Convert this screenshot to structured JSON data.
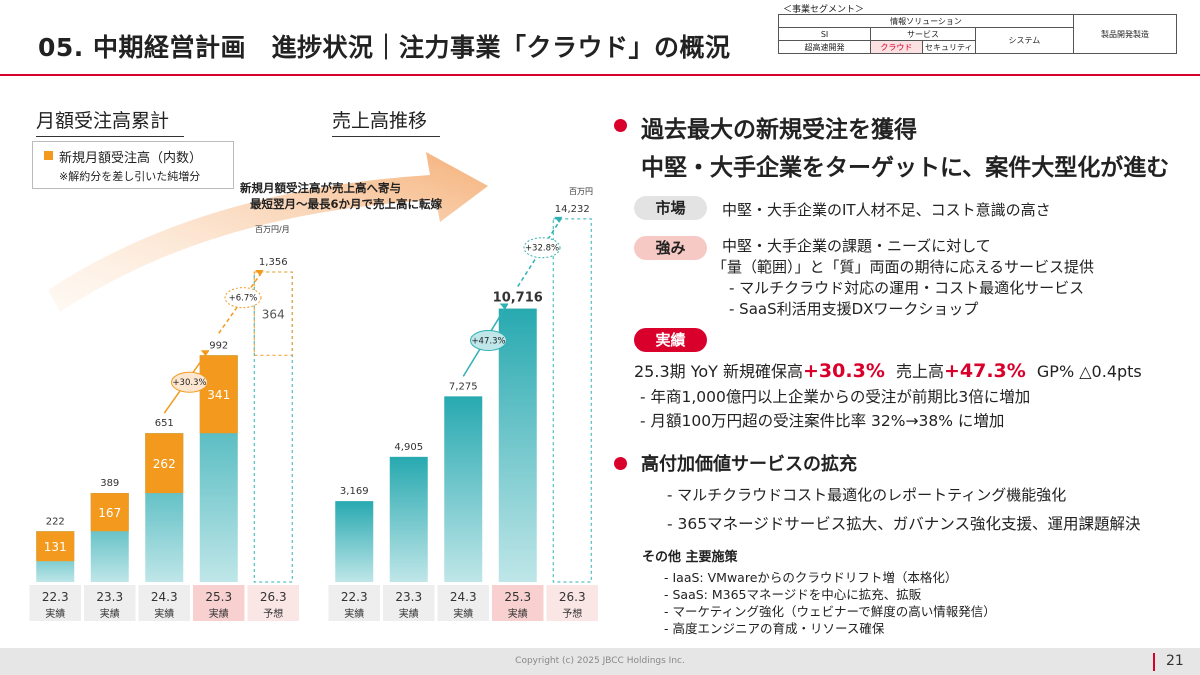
{
  "header": {
    "title": "05. 中期経営計画　進捗状況｜注力事業「クラウド」の概況",
    "segment_caption": "＜事業セグメント＞",
    "segment": {
      "info_solution": "情報ソリューション",
      "si": "SI",
      "service": "サービス",
      "system": "システム",
      "product": "製品開発製造",
      "rapid_dev": "超高速開発",
      "cloud": "クラウド",
      "security": "セキュリティ"
    }
  },
  "left_chart": {
    "heading": "月額受注高累計",
    "legend_label": "新規月額受注高（内数）",
    "legend_note": "※解約分を差し引いた純増分",
    "unit": "百万円/月",
    "growth_label": "+30.3%",
    "growth_label2": "+6.7%"
  },
  "right_chart": {
    "heading": "売上高推移",
    "unit": "百万円",
    "growth_label": "+47.3%",
    "growth_label2": "+32.8%"
  },
  "arrow_text": {
    "line1": "新規月額受注高が売上高へ寄与",
    "line2": "最短翌月～最長6か月で売上高に転嫁"
  },
  "chart_data": [
    {
      "type": "bar",
      "categories": [
        "22.3",
        "23.3",
        "24.3",
        "25.3",
        "26.3"
      ],
      "category_sublabels": [
        "実績",
        "実績",
        "実績",
        "実績",
        "予想"
      ],
      "series": [
        {
          "name": "",
          "values": [
            222,
            389,
            651,
            992,
            1356
          ],
          "labels": [
            "222",
            "389",
            "651",
            "992",
            "1,356"
          ]
        },
        {
          "name": "新規月額受注高（内数）",
          "values": [
            131,
            167,
            262,
            341,
            364
          ],
          "labels": [
            "131",
            "167",
            "262",
            "341",
            "364"
          ]
        }
      ],
      "ylim": [
        0,
        1400
      ],
      "forecast_index": 4,
      "colors": {
        "total": "#2fb0b4",
        "new": "#f39a1e"
      }
    },
    {
      "type": "bar",
      "categories": [
        "22.3",
        "23.3",
        "24.3",
        "25.3",
        "26.3"
      ],
      "category_sublabels": [
        "実績",
        "実績",
        "実績",
        "実績",
        "予想"
      ],
      "series": [
        {
          "name": "",
          "values": [
            3169,
            4905,
            7275,
            10716,
            14232
          ],
          "labels": [
            "3,169",
            "4,905",
            "7,275",
            "10,716",
            "14,232"
          ]
        }
      ],
      "ylim": [
        0,
        14500
      ],
      "forecast_index": 4,
      "colors": {
        "bar": "#2fb0b4"
      }
    }
  ],
  "right": {
    "headline1": "過去最大の新規受注を獲得",
    "headline2": "中堅・大手企業をターゲットに、案件大型化が進む",
    "market_label": "市場",
    "market_text": "中堅・大手企業のIT人材不足、コスト意識の高さ",
    "strength_label": "強み",
    "strength_lines": [
      "中堅・大手企業の課題・ニーズに対して",
      "「量（範囲）」と「質」両面の期待に応えるサービス提供",
      "　- マルチクラウド対応の運用・コスト最適化サービス",
      "　- SaaS利活用支援DXワークショップ"
    ],
    "result_label": "実績",
    "kpi": {
      "prefix": "25.3期 YoY  新規確保高",
      "new_value": "+30.3%",
      "sales_label": "売上高",
      "sales_value": "+47.3%",
      "gp": "GP% △0.4pts"
    },
    "result_lines": [
      "- 年商1,000億円以上企業からの受注が前期比3倍に増加",
      "- 月額100万円超の受注案件比率 32%→38% に増加"
    ],
    "headline3": "高付加価値サービスの拡充",
    "value_lines": [
      "- マルチクラウドコスト最適化のレポートティング機能強化",
      "- 365マネージドサービス拡大、ガバナンス強化支援、運用課題解決"
    ],
    "other_title": "その他  主要施策",
    "other_lines": [
      "- IaaS: VMwareからのクラウドリフト増（本格化）",
      "- SaaS: M365マネージドを中心に拡充、拡販",
      "- マーケティング強化（ウェビナーで鮮度の高い情報発信）",
      "- 高度エンジニアの育成・リソース確保"
    ]
  },
  "footer": {
    "copyright": "Copyright (c) 2025 JBCC Holdings Inc.",
    "page": "21"
  }
}
